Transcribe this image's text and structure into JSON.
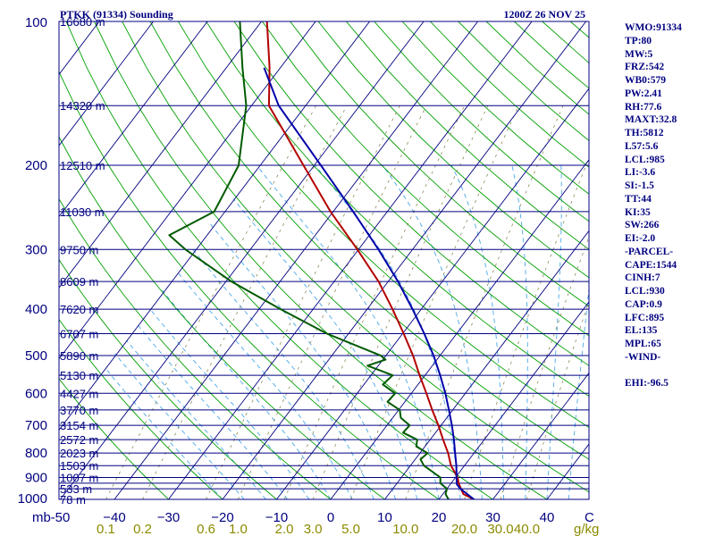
{
  "chart_data": {
    "type": "line",
    "subtype": "skew-t log-p sounding",
    "title_left": "PTKK (91334) Sounding",
    "title_right": "1200Z 26 NOV 25",
    "pressure_axis": {
      "label": "mb",
      "range": [
        100,
        1000
      ],
      "ticks": [
        100,
        200,
        300,
        400,
        500,
        600,
        700,
        800,
        900,
        1000
      ]
    },
    "isobars": [
      100,
      150,
      200,
      250,
      300,
      350,
      400,
      450,
      500,
      550,
      600,
      650,
      700,
      750,
      800,
      850,
      900,
      925,
      950,
      1000
    ],
    "height_labels": [
      {
        "p": 100,
        "text": "16680 m"
      },
      {
        "p": 150,
        "text": "14320 m"
      },
      {
        "p": 200,
        "text": "12510 m"
      },
      {
        "p": 250,
        "text": "11030 m"
      },
      {
        "p": 300,
        "text": "9750 m"
      },
      {
        "p": 350,
        "text": "8609 m"
      },
      {
        "p": 400,
        "text": "7620 m"
      },
      {
        "p": 450,
        "text": "6707 m"
      },
      {
        "p": 500,
        "text": "5890 m"
      },
      {
        "p": 550,
        "text": "5130 m"
      },
      {
        "p": 600,
        "text": "4427 m"
      },
      {
        "p": 650,
        "text": "3770 m"
      },
      {
        "p": 700,
        "text": "3154 m"
      },
      {
        "p": 750,
        "text": "2572 m"
      },
      {
        "p": 800,
        "text": "2023 m"
      },
      {
        "p": 850,
        "text": "1503 m"
      },
      {
        "p": 900,
        "text": "1007 m"
      },
      {
        "p": 950,
        "text": "533 m"
      },
      {
        "p": 1000,
        "text": "78 m"
      }
    ],
    "temperature_axis": {
      "label": "C",
      "range": [
        -50,
        50
      ],
      "ticks": [
        -50,
        -40,
        -30,
        -20,
        -10,
        0,
        10,
        20,
        30,
        40
      ],
      "tick_labels": [
        "-50",
        "−40",
        "−30",
        "−20",
        "−10",
        "0",
        "10",
        "20",
        "30",
        "40"
      ]
    },
    "mixing_ratio_axis": {
      "label": "g/kg",
      "ticks": [
        {
          "value": 0.1,
          "text": "0.1"
        },
        {
          "value": 0.2,
          "text": "0.2"
        },
        {
          "value": 0.6,
          "text": "0.6"
        },
        {
          "value": 1.0,
          "text": "1.0"
        },
        {
          "value": 2.0,
          "text": "2.0"
        },
        {
          "value": 3.0,
          "text": "3.0"
        },
        {
          "value": 5.0,
          "text": "5.0"
        },
        {
          "value": 10.0,
          "text": "10.0"
        },
        {
          "value": 20.0,
          "text": "20.0"
        },
        {
          "value": 30.0,
          "text": "30.0"
        },
        {
          "value": 40.0,
          "text": "40.0"
        }
      ]
    },
    "series": [
      {
        "name": "Temperature",
        "color": "#b40000",
        "points": [
          {
            "p": 1000,
            "t": 26.5
          },
          {
            "p": 975,
            "t": 23.8
          },
          {
            "p": 950,
            "t": 22.6
          },
          {
            "p": 925,
            "t": 21.4
          },
          {
            "p": 900,
            "t": 20.4
          },
          {
            "p": 850,
            "t": 17.5
          },
          {
            "p": 800,
            "t": 15.2
          },
          {
            "p": 750,
            "t": 12.4
          },
          {
            "p": 700,
            "t": 9.5
          },
          {
            "p": 650,
            "t": 6.2
          },
          {
            "p": 600,
            "t": 2.8
          },
          {
            "p": 550,
            "t": -1.0
          },
          {
            "p": 500,
            "t": -5.0
          },
          {
            "p": 450,
            "t": -9.8
          },
          {
            "p": 400,
            "t": -15.3
          },
          {
            "p": 350,
            "t": -21.8
          },
          {
            "p": 300,
            "t": -30.2
          },
          {
            "p": 250,
            "t": -40.5
          },
          {
            "p": 200,
            "t": -52.0
          },
          {
            "p": 150,
            "t": -66.8
          },
          {
            "p": 125,
            "t": -72.0
          },
          {
            "p": 100,
            "t": -79.0
          }
        ]
      },
      {
        "name": "Dewpoint",
        "color": "#005a00",
        "points": [
          {
            "p": 1000,
            "t": 21.8
          },
          {
            "p": 975,
            "t": 20.5
          },
          {
            "p": 950,
            "t": 20.0
          },
          {
            "p": 925,
            "t": 18.0
          },
          {
            "p": 900,
            "t": 17.2
          },
          {
            "p": 850,
            "t": 12.5
          },
          {
            "p": 825,
            "t": 11.0
          },
          {
            "p": 800,
            "t": 11.4
          },
          {
            "p": 775,
            "t": 8.4
          },
          {
            "p": 750,
            "t": 7.6
          },
          {
            "p": 725,
            "t": 4.0
          },
          {
            "p": 700,
            "t": 4.2
          },
          {
            "p": 675,
            "t": 1.5
          },
          {
            "p": 650,
            "t": 0.2
          },
          {
            "p": 625,
            "t": -3.2
          },
          {
            "p": 600,
            "t": -3.0
          },
          {
            "p": 575,
            "t": -6.5
          },
          {
            "p": 550,
            "t": -6.0
          },
          {
            "p": 525,
            "t": -12.0
          },
          {
            "p": 510,
            "t": -9.5
          },
          {
            "p": 500,
            "t": -11.0
          },
          {
            "p": 450,
            "t": -24.0
          },
          {
            "p": 400,
            "t": -36.0
          },
          {
            "p": 350,
            "t": -49.0
          },
          {
            "p": 300,
            "t": -62.0
          },
          {
            "p": 280,
            "t": -67.0
          },
          {
            "p": 250,
            "t": -62.0
          },
          {
            "p": 200,
            "t": -64.0
          },
          {
            "p": 150,
            "t": -71.0
          },
          {
            "p": 125,
            "t": -77.0
          },
          {
            "p": 100,
            "t": -84.0
          }
        ]
      },
      {
        "name": "Parcel path",
        "color": "#0000a8",
        "points": [
          {
            "p": 1000,
            "t": 26.5
          },
          {
            "p": 950,
            "t": 22.5
          },
          {
            "p": 930,
            "t": 21.2
          },
          {
            "p": 900,
            "t": 20.2
          },
          {
            "p": 850,
            "t": 18.5
          },
          {
            "p": 800,
            "t": 16.5
          },
          {
            "p": 750,
            "t": 14.4
          },
          {
            "p": 700,
            "t": 12.0
          },
          {
            "p": 650,
            "t": 9.3
          },
          {
            "p": 600,
            "t": 6.3
          },
          {
            "p": 550,
            "t": 2.8
          },
          {
            "p": 500,
            "t": -1.2
          },
          {
            "p": 450,
            "t": -6.0
          },
          {
            "p": 400,
            "t": -11.6
          },
          {
            "p": 350,
            "t": -18.2
          },
          {
            "p": 300,
            "t": -26.3
          },
          {
            "p": 250,
            "t": -36.3
          },
          {
            "p": 200,
            "t": -48.8
          },
          {
            "p": 150,
            "t": -65.0
          },
          {
            "p": 125,
            "t": -73.0
          }
        ]
      }
    ],
    "indices": [
      "WMO:91334",
      "TP:80",
      "MW:5",
      "FRZ:542",
      "WB0:579",
      "PW:2.41",
      "RH:77.6",
      "MAXT:32.8",
      "TH:5812",
      "L57:5.6",
      "LCL:985",
      "LI:-3.6",
      "SI:-1.5",
      "TT:44",
      "KI:35",
      "SW:266",
      "EI:-2.0",
      "-PARCEL-",
      "CAPE:1544",
      "CINH:7",
      "LCL:930",
      "CAP:0.9",
      "LFC:895",
      "EL:135",
      "MPL:65",
      "-WIND-"
    ],
    "indices_extra": "EHI:-96.5",
    "colors": {
      "frame": "#000080",
      "isobar": "#000080",
      "isotherm": "#000080",
      "dry_adiabat": "#00a000",
      "moist_adiabat": "#4aa8e8",
      "mixing_ratio": "#8b8b5a",
      "temperature": "#b40000",
      "dewpoint": "#005a00",
      "parcel": "#0000a8"
    }
  }
}
